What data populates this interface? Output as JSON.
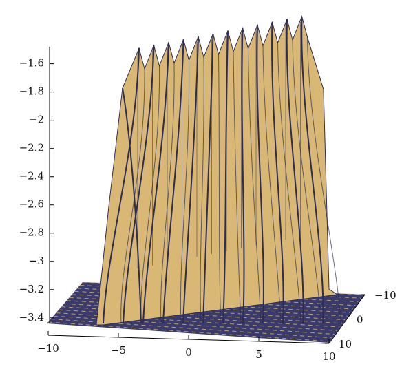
{
  "chart_data": {
    "type": "surface",
    "xlim": [
      -10,
      10
    ],
    "xticks": [
      {
        "value": -10,
        "label": "−10"
      },
      {
        "value": -5,
        "label": "−5"
      },
      0,
      5,
      10
    ],
    "ylim": [
      -10,
      10
    ],
    "yticks": [
      {
        "value": -10,
        "label": "−10"
      },
      0,
      10
    ],
    "zlim": [
      -3.44,
      -1.48
    ],
    "zticks": [
      {
        "value": -1.6,
        "label": "−1.6"
      },
      {
        "value": -1.8,
        "label": "−1.8"
      },
      {
        "value": -2,
        "label": "−2"
      },
      {
        "value": -2.2,
        "label": "−2.2"
      },
      {
        "value": -2.4,
        "label": "−2.4"
      },
      {
        "value": -2.6,
        "label": "−2.6"
      },
      {
        "value": -2.8,
        "label": "−2.8"
      },
      {
        "value": -3,
        "label": "−3"
      },
      {
        "value": -3.2,
        "label": "−3.2"
      },
      {
        "value": -3.4,
        "label": "−3.4"
      }
    ],
    "color": "#d8b874",
    "floor_color": "#3b3b6b",
    "line_color": "#2c2c55"
  }
}
